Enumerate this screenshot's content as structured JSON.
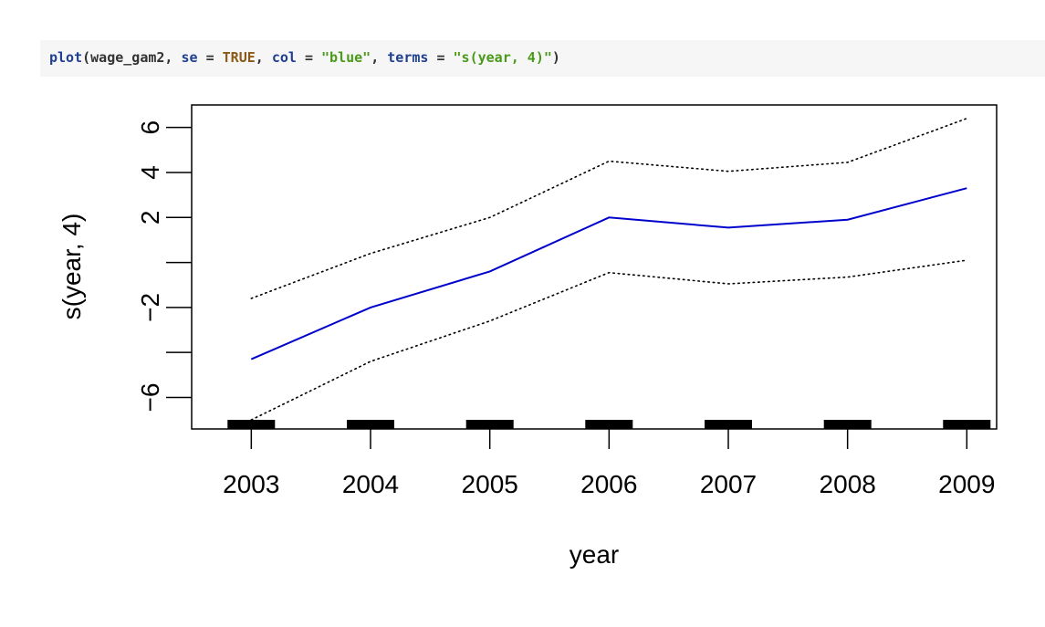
{
  "code": {
    "tokens": [
      {
        "text": "plot",
        "kind": "fn"
      },
      {
        "text": "(wage_gam2, ",
        "kind": "txt"
      },
      {
        "text": "se",
        "kind": "fn"
      },
      {
        "text": " = ",
        "kind": "txt"
      },
      {
        "text": "TRUE",
        "kind": "kw"
      },
      {
        "text": ", ",
        "kind": "txt"
      },
      {
        "text": "col",
        "kind": "fn"
      },
      {
        "text": " = ",
        "kind": "txt"
      },
      {
        "text": "\"blue\"",
        "kind": "str"
      },
      {
        "text": ", ",
        "kind": "txt"
      },
      {
        "text": "terms",
        "kind": "fn"
      },
      {
        "text": " = ",
        "kind": "txt"
      },
      {
        "text": "\"s(year, 4)\"",
        "kind": "str"
      },
      {
        "text": ")",
        "kind": "txt"
      }
    ]
  },
  "chart_data": {
    "type": "line",
    "title": "",
    "xlabel": "year",
    "ylabel": "s(year, 4)",
    "x": [
      2003,
      2004,
      2005,
      2006,
      2007,
      2008,
      2009
    ],
    "x_tick_labels": [
      "2003",
      "2004",
      "2005",
      "2006",
      "2007",
      "2008",
      "2009"
    ],
    "y_ticks": [
      -6,
      -4,
      -2,
      0,
      2,
      4,
      6
    ],
    "y_tick_labels": [
      "−6",
      "",
      "−2",
      "",
      "2",
      "4",
      "6"
    ],
    "xlim": [
      2002.5,
      2009.25
    ],
    "ylim": [
      -7.4,
      7.0
    ],
    "rug_x": [
      2003,
      2004,
      2005,
      2006,
      2007,
      2008,
      2009
    ],
    "series": [
      {
        "role": "fit",
        "values": [
          -4.3,
          -2.0,
          -0.4,
          2.0,
          1.55,
          1.9,
          3.3
        ],
        "color": "#0000cc",
        "style": "solid"
      },
      {
        "role": "upper-band",
        "values": [
          -1.6,
          0.4,
          2.0,
          4.5,
          4.05,
          4.45,
          6.4
        ],
        "color": "#000000",
        "style": "dotted"
      },
      {
        "role": "lower-band",
        "values": [
          -7.0,
          -4.4,
          -2.6,
          -0.45,
          -0.95,
          -0.65,
          0.1
        ],
        "color": "#000000",
        "style": "dotted"
      }
    ],
    "grid": false,
    "legend": "none"
  }
}
